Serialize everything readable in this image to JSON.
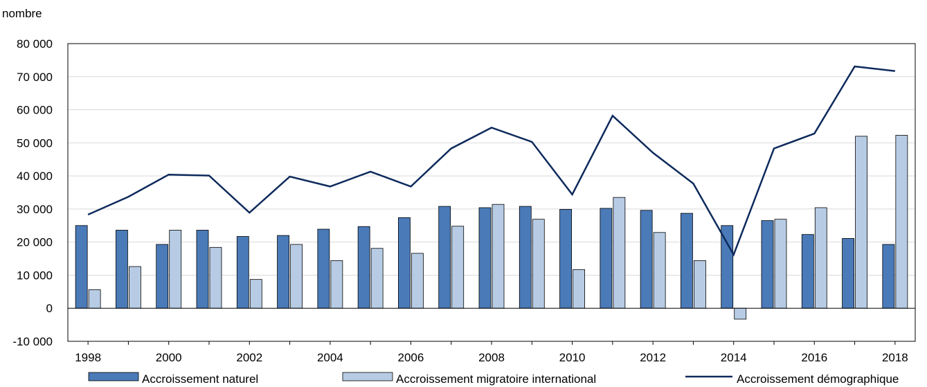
{
  "chart_data": {
    "type": "bar",
    "title": "",
    "unit_label": "nombre",
    "xlabel": "",
    "ylabel": "",
    "categories": [
      "1998",
      "1999",
      "2000",
      "2001",
      "2002",
      "2003",
      "2004",
      "2005",
      "2006",
      "2007",
      "2008",
      "2009",
      "2010",
      "2011",
      "2012",
      "2013",
      "2014",
      "2015",
      "2016",
      "2017",
      "2018"
    ],
    "x_tick_labels": [
      "1998",
      "2000",
      "2002",
      "2004",
      "2006",
      "2008",
      "2010",
      "2012",
      "2014",
      "2016",
      "2018"
    ],
    "y_tick_labels": [
      "-10 000",
      "0",
      "10 000",
      "20 000",
      "30 000",
      "40 000",
      "50 000",
      "60 000",
      "70 000",
      "80 000"
    ],
    "ylim": [
      -10000,
      80000
    ],
    "y_ticks": [
      -10000,
      0,
      10000,
      20000,
      30000,
      40000,
      50000,
      60000,
      70000,
      80000
    ],
    "grid": true,
    "legend_position": "bottom",
    "series": [
      {
        "name": "Accroissement naturel",
        "type": "bar",
        "color": "#4a7ab8",
        "values": [
          25000,
          23600,
          19300,
          23600,
          21700,
          22000,
          23900,
          24700,
          27400,
          30800,
          30400,
          30800,
          29900,
          30200,
          29600,
          28700,
          25000,
          26500,
          22300,
          21100,
          19300
        ]
      },
      {
        "name": "Accroissement migratoire international",
        "type": "bar",
        "color": "#b7cce4",
        "values": [
          5600,
          12600,
          23600,
          18400,
          8700,
          19300,
          14400,
          18100,
          16600,
          24800,
          31400,
          26900,
          11700,
          33500,
          22900,
          14400,
          -3300,
          26900,
          30400,
          52000,
          52300
        ]
      },
      {
        "name": "Accroissement démographique",
        "type": "line",
        "color": "#0e2a5c",
        "values": [
          28300,
          33700,
          40400,
          40100,
          28900,
          39800,
          36800,
          41300,
          36800,
          48300,
          54600,
          50300,
          34400,
          58200,
          47000,
          37700,
          16200,
          48300,
          52800,
          73100,
          71700
        ]
      }
    ]
  }
}
